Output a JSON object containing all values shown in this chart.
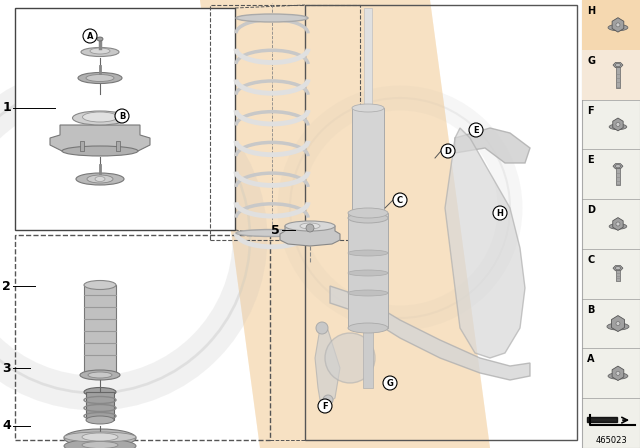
{
  "bg_color": "#f0f0f0",
  "main_bg": "#ffffff",
  "part_number": "465023",
  "labels_right": [
    "H",
    "G",
    "F",
    "E",
    "D",
    "C",
    "B",
    "A"
  ],
  "right_panel_bg": "#f0f0e8",
  "peach_color": "#f0c8a0",
  "gray_light": "#e0e0e0",
  "gray_mid": "#b8b8b8",
  "gray_dark": "#888888",
  "gray_darker": "#666666",
  "white_part": "#d8d8d8",
  "box_border": "#555555"
}
